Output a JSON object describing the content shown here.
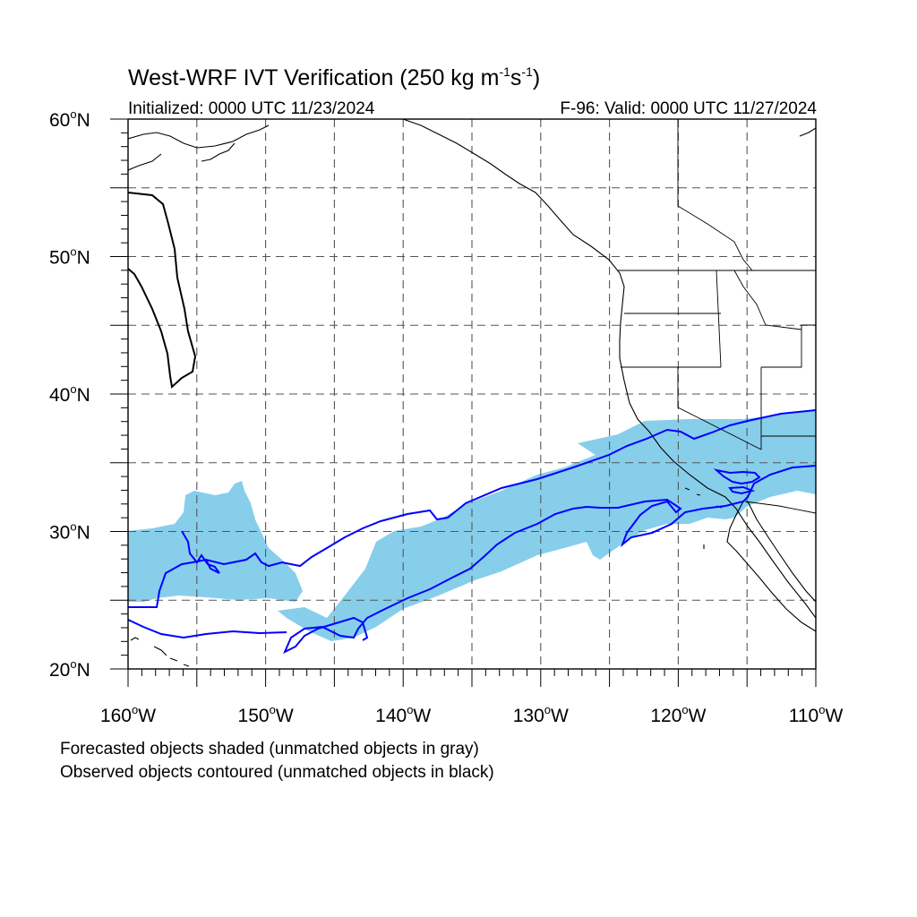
{
  "title": {
    "main_prefix": "West-WRF IVT Verification (250 kg m",
    "sup1": "-1",
    "main_mid": "s",
    "sup2": "-1",
    "main_suffix": ")"
  },
  "subtitle_left": "Initialized: 0000 UTC 11/23/2024",
  "subtitle_right": "F-96: Valid: 0000 UTC 11/27/2024",
  "map": {
    "lat_range": [
      20,
      60
    ],
    "lon_range": [
      -160,
      -110
    ],
    "lat_labels": [
      {
        "value": 60,
        "text": "60",
        "suffix": "N"
      },
      {
        "value": 50,
        "text": "50",
        "suffix": "N"
      },
      {
        "value": 40,
        "text": "40",
        "suffix": "N"
      },
      {
        "value": 30,
        "text": "30",
        "suffix": "N"
      },
      {
        "value": 20,
        "text": "20",
        "suffix": "N"
      }
    ],
    "lon_labels": [
      {
        "value": -160,
        "text": "160",
        "suffix": "W"
      },
      {
        "value": -150,
        "text": "150",
        "suffix": "W"
      },
      {
        "value": -140,
        "text": "140",
        "suffix": "W"
      },
      {
        "value": -130,
        "text": "130",
        "suffix": "W"
      },
      {
        "value": -120,
        "text": "120",
        "suffix": "W"
      },
      {
        "value": -110,
        "text": "110",
        "suffix": "W"
      }
    ],
    "gridline_interval_deg": 5,
    "colors": {
      "forecast_fill": "#87ceeb",
      "observed_contour": "#0000ff",
      "coastline": "#000000",
      "gridline": "#555555"
    }
  },
  "footnotes": [
    "Forecasted objects shaded (unmatched objects in gray)",
    "Observed objects contoured (unmatched objects in black)"
  ]
}
